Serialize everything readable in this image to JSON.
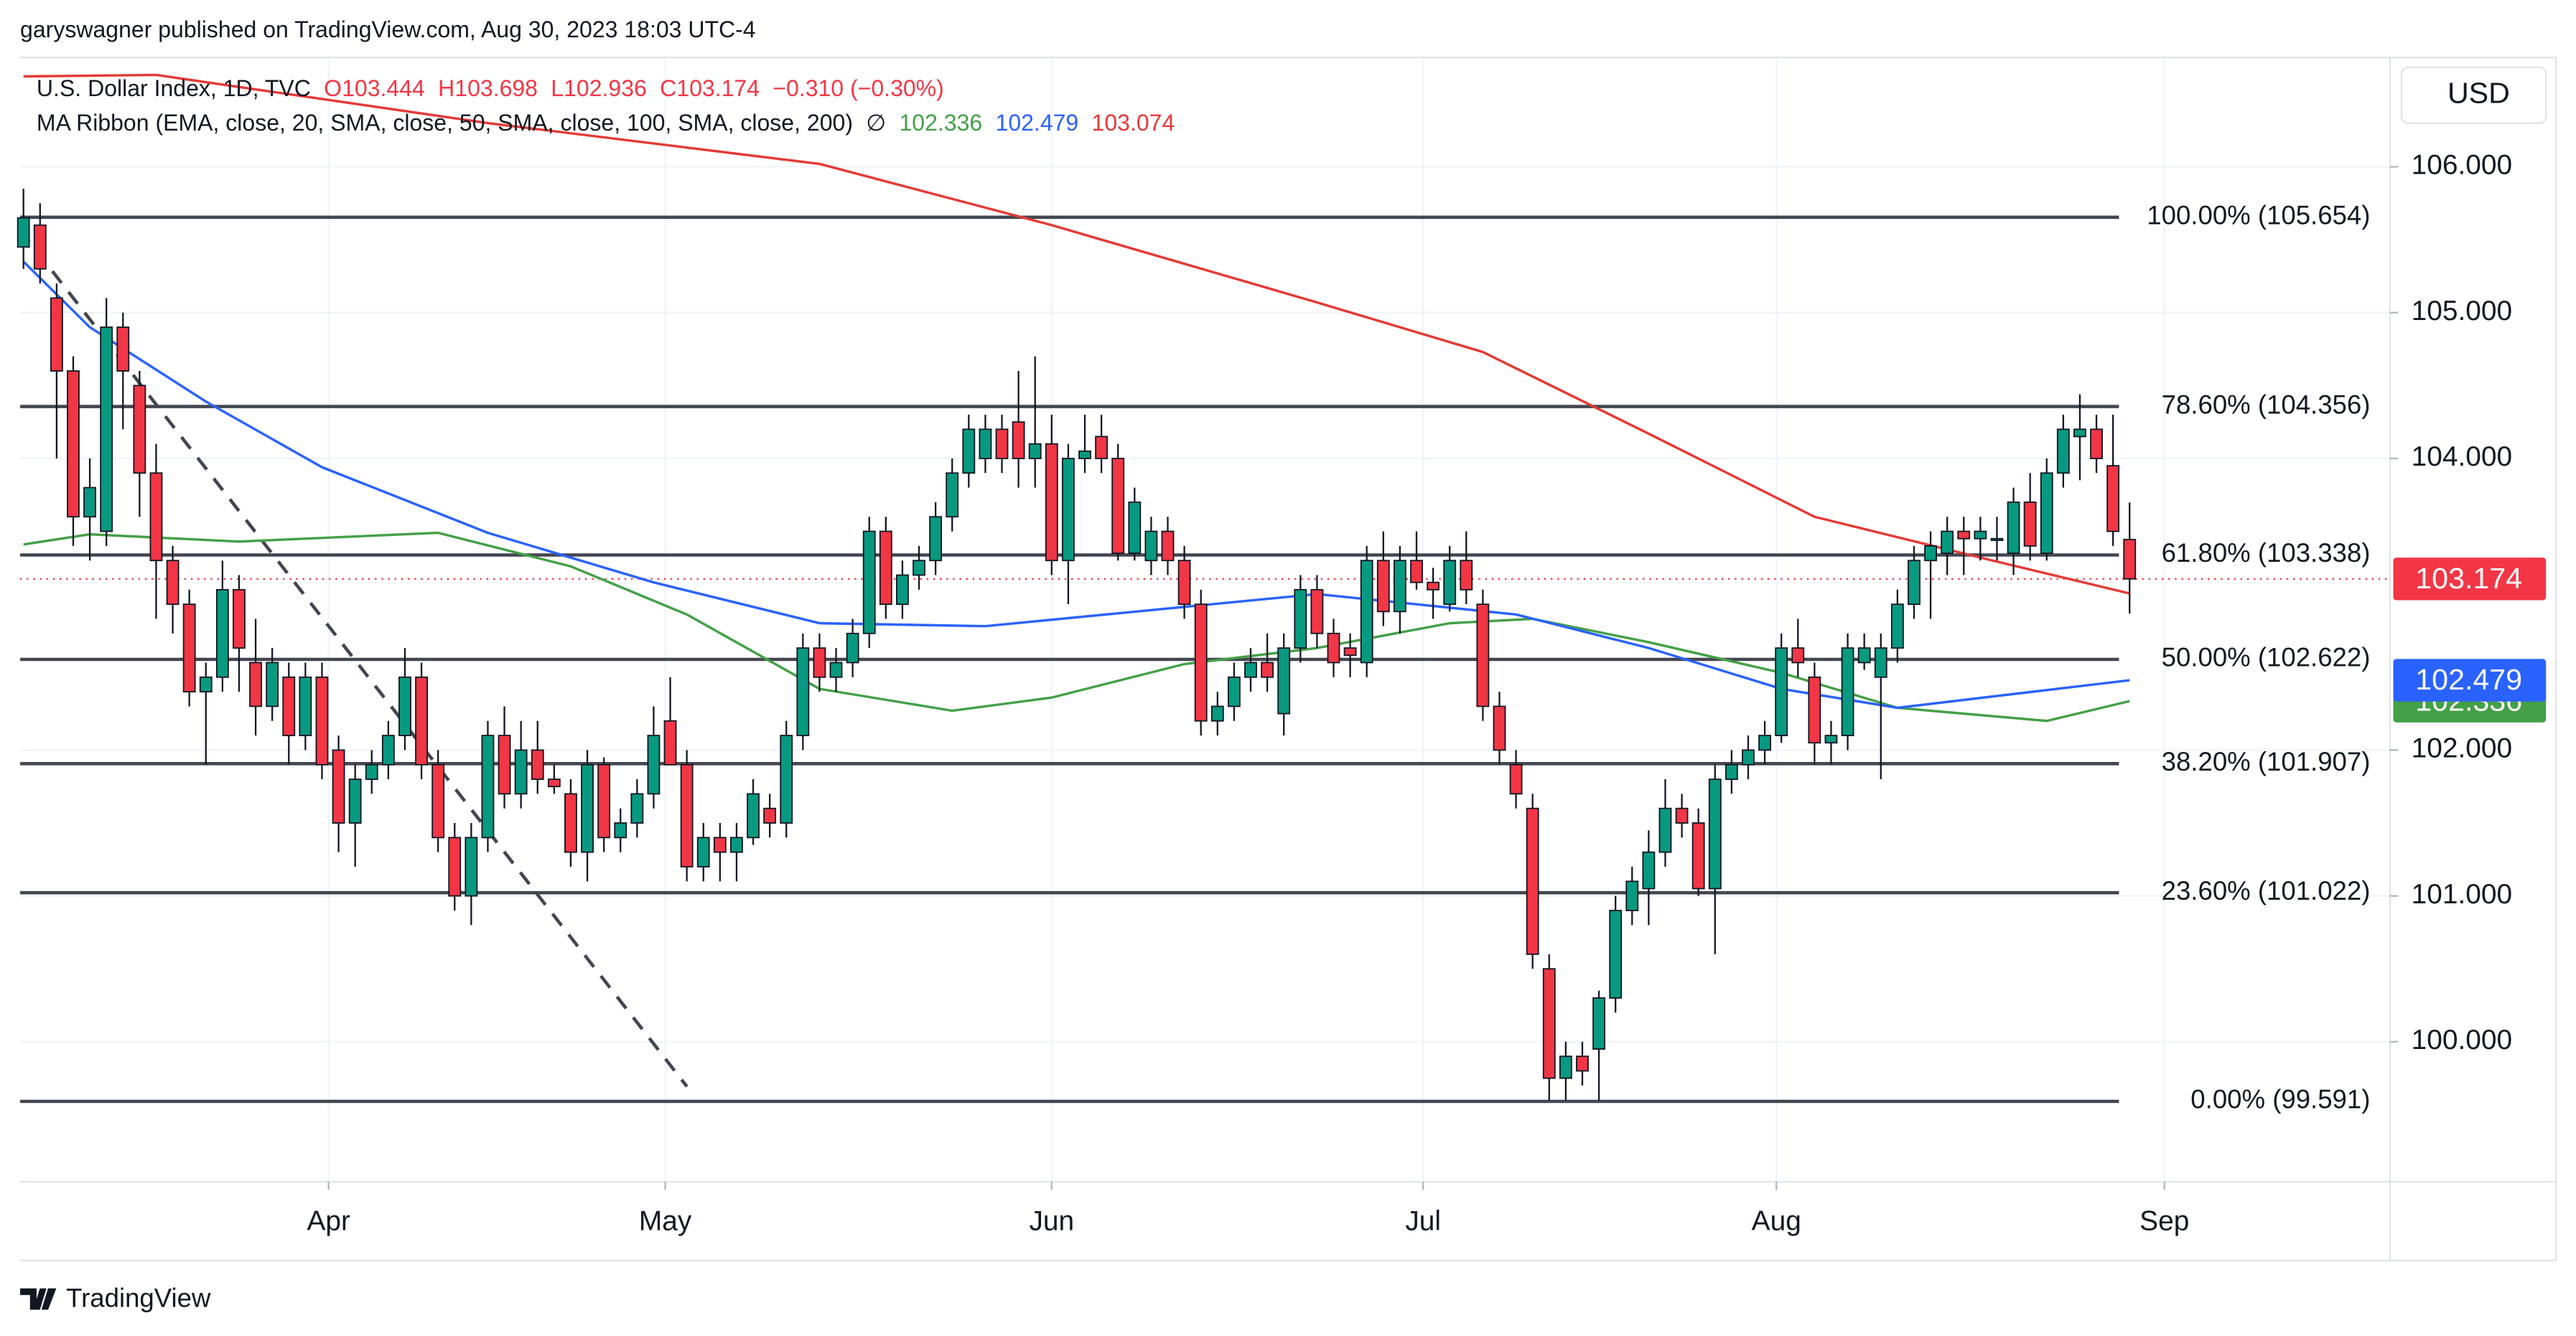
{
  "header": {
    "publisher": "garyswagner published on TradingView.com, Aug 30, 2023 18:03 UTC-4"
  },
  "chart_data": {
    "type": "candlestick",
    "title": "U.S. Dollar Index, 1D, TVC",
    "ohlc_labels": [
      "O103.444",
      "H103.698",
      "L102.936",
      "C103.174",
      "−0.310 (−0.30%)"
    ],
    "indicator": {
      "name": "MA Ribbon (EMA, close, 20, SMA, close, 50, SMA, close, 100, SMA, close, 200)",
      "symbol": "∅"
    },
    "currency": "USD",
    "categories": [
      null,
      null,
      null,
      null,
      null,
      null,
      null,
      null,
      null,
      null,
      null,
      null,
      null,
      null,
      null,
      null,
      null,
      null,
      null,
      null,
      null,
      null,
      null,
      null,
      null,
      null,
      null,
      null,
      null,
      null,
      null,
      null,
      null,
      null,
      null,
      null,
      null,
      null,
      null,
      null,
      null,
      null,
      null,
      null,
      null,
      null,
      null,
      null,
      null,
      null,
      null,
      null,
      null,
      null,
      null,
      null,
      null,
      null,
      null,
      null,
      null,
      null,
      null,
      null,
      null,
      null,
      null,
      null,
      null,
      null,
      null,
      null,
      null,
      null,
      null,
      null,
      null,
      null,
      null,
      null,
      null,
      null,
      null,
      null,
      null,
      null,
      null,
      null,
      null,
      null,
      null,
      null,
      null,
      null,
      null,
      null,
      null,
      null,
      null,
      null,
      null,
      null,
      null,
      null,
      null,
      null,
      null,
      null,
      null,
      null,
      null,
      null,
      null,
      null,
      null,
      null,
      null,
      null,
      null,
      null,
      null,
      null,
      null,
      null,
      null,
      null,
      null,
      null
    ],
    "open": [
      105.45,
      105.6,
      105.1,
      104.6,
      103.6,
      103.5,
      104.9,
      104.5,
      103.9,
      103.3,
      103.0,
      102.4,
      102.5,
      103.1,
      102.6,
      102.3,
      102.5,
      102.1,
      102.5,
      102.0,
      101.5,
      101.8,
      101.9,
      102.1,
      102.5,
      101.9,
      101.4,
      101.0,
      101.4,
      102.1,
      101.7,
      102.0,
      101.8,
      101.7,
      101.3,
      101.9,
      101.4,
      101.5,
      101.7,
      102.2,
      101.9,
      101.2,
      101.4,
      101.3,
      101.4,
      101.6,
      101.5,
      102.1,
      102.7,
      102.5,
      102.6,
      102.8,
      103.5,
      103.0,
      103.2,
      103.3,
      103.6,
      103.9,
      104.0,
      104.2,
      104.25,
      104.0,
      104.1,
      103.3,
      104.0,
      104.15,
      104.0,
      103.35,
      103.3,
      103.5,
      103.3,
      103.0,
      102.2,
      102.3,
      102.5,
      102.6,
      102.25,
      102.7,
      103.1,
      102.8,
      102.7,
      102.6,
      103.3,
      102.95,
      103.3,
      103.15,
      103.0,
      103.3,
      103.0,
      102.3,
      101.9,
      101.6,
      100.5,
      99.75,
      99.9,
      99.95,
      100.3,
      100.9,
      101.05,
      101.3,
      101.6,
      101.5,
      101.05,
      101.8,
      101.9,
      102.0,
      102.1,
      102.7,
      102.5,
      102.05,
      102.1,
      102.6,
      102.5,
      102.7,
      103.0,
      103.3,
      103.35,
      103.5,
      103.45,
      103.45,
      103.35,
      103.7,
      103.35,
      103.9,
      104.15,
      104.2,
      103.95,
      103.444
    ],
    "high": [
      105.85,
      105.75,
      105.2,
      104.7,
      104.0,
      105.1,
      105.0,
      104.6,
      104.1,
      103.4,
      103.1,
      102.6,
      103.3,
      103.2,
      102.9,
      102.7,
      102.6,
      102.6,
      102.6,
      102.1,
      101.9,
      102.0,
      102.2,
      102.7,
      102.6,
      102.0,
      101.5,
      101.5,
      102.2,
      102.3,
      102.2,
      102.2,
      101.9,
      101.8,
      102.0,
      101.95,
      101.6,
      101.8,
      102.3,
      102.5,
      102.0,
      101.5,
      101.5,
      101.5,
      101.8,
      101.7,
      102.2,
      102.8,
      102.8,
      102.7,
      102.9,
      103.6,
      103.6,
      103.3,
      103.4,
      103.7,
      104.0,
      104.3,
      104.3,
      104.3,
      104.6,
      104.7,
      104.3,
      104.1,
      104.3,
      104.3,
      104.1,
      103.8,
      103.6,
      103.6,
      103.4,
      103.1,
      102.4,
      102.6,
      102.7,
      102.8,
      102.8,
      103.2,
      103.2,
      102.9,
      102.8,
      103.4,
      103.5,
      103.4,
      103.5,
      103.25,
      103.4,
      103.5,
      103.1,
      102.4,
      102.0,
      101.7,
      100.6,
      100.0,
      100.0,
      100.35,
      101.0,
      101.2,
      101.45,
      101.8,
      101.7,
      101.6,
      101.9,
      102.0,
      102.1,
      102.2,
      102.8,
      102.9,
      102.6,
      102.2,
      102.8,
      102.8,
      102.8,
      103.1,
      103.4,
      103.5,
      103.6,
      103.6,
      103.6,
      103.6,
      103.8,
      103.9,
      104.0,
      104.3,
      104.44,
      104.3,
      104.3,
      103.698
    ],
    "low": [
      105.3,
      105.2,
      104.0,
      103.4,
      103.3,
      103.4,
      104.2,
      103.6,
      102.9,
      102.8,
      102.3,
      101.9,
      102.4,
      102.4,
      102.1,
      102.2,
      101.9,
      102.0,
      101.8,
      101.3,
      101.2,
      101.7,
      101.8,
      102.0,
      101.8,
      101.3,
      100.9,
      100.8,
      101.3,
      101.6,
      101.6,
      101.7,
      101.7,
      101.2,
      101.1,
      101.3,
      101.3,
      101.4,
      101.6,
      101.9,
      101.1,
      101.1,
      101.1,
      101.1,
      101.35,
      101.4,
      101.4,
      102.0,
      102.4,
      102.4,
      102.5,
      102.7,
      102.9,
      102.9,
      103.1,
      103.2,
      103.5,
      103.8,
      103.9,
      103.9,
      103.8,
      103.8,
      103.2,
      103.0,
      103.9,
      103.9,
      103.3,
      103.3,
      103.2,
      103.2,
      102.9,
      102.1,
      102.1,
      102.2,
      102.4,
      102.4,
      102.1,
      102.6,
      102.7,
      102.5,
      102.5,
      102.5,
      102.85,
      102.8,
      103.1,
      102.9,
      102.95,
      103.0,
      102.2,
      101.9,
      101.6,
      100.5,
      99.6,
      99.6,
      99.7,
      99.6,
      100.2,
      100.8,
      100.8,
      101.2,
      101.4,
      101.0,
      100.6,
      101.7,
      101.8,
      101.9,
      102.05,
      102.5,
      101.9,
      101.9,
      102.0,
      102.55,
      101.8,
      102.6,
      102.9,
      102.9,
      103.2,
      103.2,
      103.3,
      103.3,
      103.2,
      103.3,
      103.3,
      103.8,
      103.85,
      103.9,
      103.4,
      102.936
    ],
    "close": [
      105.65,
      105.3,
      104.6,
      103.6,
      103.8,
      104.9,
      104.6,
      103.9,
      103.3,
      103.0,
      102.4,
      102.5,
      103.1,
      102.7,
      102.3,
      102.6,
      102.1,
      102.5,
      101.9,
      101.5,
      101.8,
      101.9,
      102.1,
      102.5,
      101.9,
      101.4,
      101.0,
      101.4,
      102.1,
      101.7,
      102.0,
      101.8,
      101.75,
      101.3,
      101.9,
      101.4,
      101.5,
      101.7,
      102.1,
      101.9,
      101.2,
      101.4,
      101.3,
      101.4,
      101.7,
      101.5,
      102.1,
      102.7,
      102.5,
      102.6,
      102.8,
      103.5,
      103.0,
      103.2,
      103.3,
      103.6,
      103.9,
      104.2,
      104.2,
      104.0,
      104.0,
      104.1,
      103.3,
      104.0,
      104.05,
      104.0,
      103.35,
      103.7,
      103.5,
      103.3,
      103.0,
      102.2,
      102.3,
      102.5,
      102.6,
      102.5,
      102.7,
      103.1,
      102.8,
      102.6,
      102.65,
      103.3,
      102.95,
      103.3,
      103.15,
      103.1,
      103.3,
      103.1,
      102.3,
      102.0,
      101.7,
      100.6,
      99.75,
      99.9,
      99.8,
      100.3,
      100.9,
      101.1,
      101.3,
      101.6,
      101.5,
      101.05,
      101.8,
      101.9,
      102.0,
      102.1,
      102.7,
      102.6,
      102.05,
      102.1,
      102.7,
      102.7,
      102.7,
      103.0,
      103.3,
      103.4,
      103.5,
      103.45,
      103.5,
      103.45,
      103.7,
      103.4,
      103.9,
      104.2,
      104.2,
      104.0,
      103.5,
      103.174
    ],
    "up_color": "#089981",
    "down_color": "#f23645",
    "series": [
      {
        "color": "#43a047",
        "legend_value": "102.336",
        "x": [
          0,
          4,
          13,
          25,
          33,
          40,
          48,
          56,
          62,
          70,
          78,
          86,
          91,
          98,
          106,
          113,
          122,
          127
        ],
        "values": [
          103.41,
          103.48,
          103.43,
          103.49,
          103.26,
          102.93,
          102.42,
          102.27,
          102.36,
          102.59,
          102.7,
          102.87,
          102.9,
          102.74,
          102.53,
          102.29,
          102.2,
          102.336
        ]
      },
      {
        "color": "#2962ff",
        "legend_value": "102.479",
        "x": [
          0,
          4,
          11,
          18,
          28,
          38,
          48,
          58,
          68,
          78,
          84,
          90,
          98,
          106,
          113,
          127
        ],
        "values": [
          105.35,
          104.9,
          104.39,
          103.94,
          103.49,
          103.15,
          102.87,
          102.85,
          102.96,
          103.07,
          103.0,
          102.93,
          102.7,
          102.42,
          102.29,
          102.479
        ]
      },
      {
        "color": "#e53935",
        "legend_value": "103.074",
        "x": [
          0,
          8,
          28,
          48,
          62,
          78,
          88,
          98,
          108,
          118,
          127
        ],
        "values": [
          106.62,
          106.63,
          106.3,
          106.02,
          105.6,
          105.07,
          104.73,
          104.17,
          103.6,
          103.32,
          103.074
        ]
      }
    ],
    "levels": [
      {
        "value": 105.654,
        "label": "100.00% (105.654)"
      },
      {
        "value": 104.356,
        "label": "78.60% (104.356)"
      },
      {
        "value": 103.338,
        "label": "61.80% (103.338)"
      },
      {
        "value": 102.622,
        "label": "50.00% (102.622)"
      },
      {
        "value": 101.907,
        "label": "38.20% (101.907)"
      },
      {
        "value": 101.022,
        "label": "23.60% (101.022)"
      },
      {
        "value": 99.591,
        "label": "0.00% (99.591)"
      }
    ],
    "price_labels": [
      {
        "value": 103.174,
        "label": "103.174",
        "color": "#f23645"
      },
      {
        "value": 102.479,
        "label": "102.479",
        "color": "#2962ff"
      },
      {
        "value": 102.336,
        "label": "102.336",
        "color": "#43a047"
      }
    ],
    "xlim": [
      -0.2,
      142.7
    ],
    "xticks": [
      {
        "value": 18.4,
        "label": "Apr"
      },
      {
        "value": 38.7,
        "label": "May"
      },
      {
        "value": 62,
        "label": "Jun"
      },
      {
        "value": 84.4,
        "label": "Jul"
      },
      {
        "value": 105.7,
        "label": "Aug"
      },
      {
        "value": 129.1,
        "label": "Sep"
      }
    ],
    "ylim": [
      99.04,
      106.75
    ],
    "yticks": [
      {
        "value": 100,
        "label": "100.000"
      },
      {
        "value": 101,
        "label": "101.000"
      },
      {
        "value": 102,
        "label": "102.000"
      },
      {
        "value": 104,
        "label": "104.000"
      },
      {
        "value": 105,
        "label": "105.000"
      },
      {
        "value": 106,
        "label": "106.000"
      }
    ],
    "grid": true
  },
  "footer": {
    "brand": "TradingView"
  }
}
